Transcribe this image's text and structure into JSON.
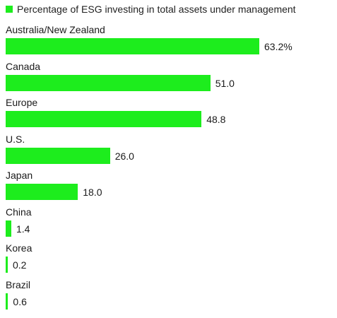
{
  "chart_data": {
    "type": "bar",
    "orientation": "horizontal",
    "legend": "top-left",
    "series": [
      {
        "name": "Percentage of ESG investing in total assets under management"
      }
    ],
    "categories": [
      "Australia/New Zealand",
      "Canada",
      "Europe",
      "U.S.",
      "Japan",
      "China",
      "Korea",
      "Brazil"
    ],
    "values": [
      63.2,
      51.0,
      48.8,
      26.0,
      18.0,
      1.4,
      0.2,
      0.6
    ],
    "value_labels": [
      "63.2%",
      "51.0",
      "48.8",
      "26.0",
      "18.0",
      "1.4",
      "0.2",
      "0.6"
    ],
    "xlim": [
      0,
      63.2
    ],
    "grid": false,
    "bar_color": "#1ded1d"
  }
}
